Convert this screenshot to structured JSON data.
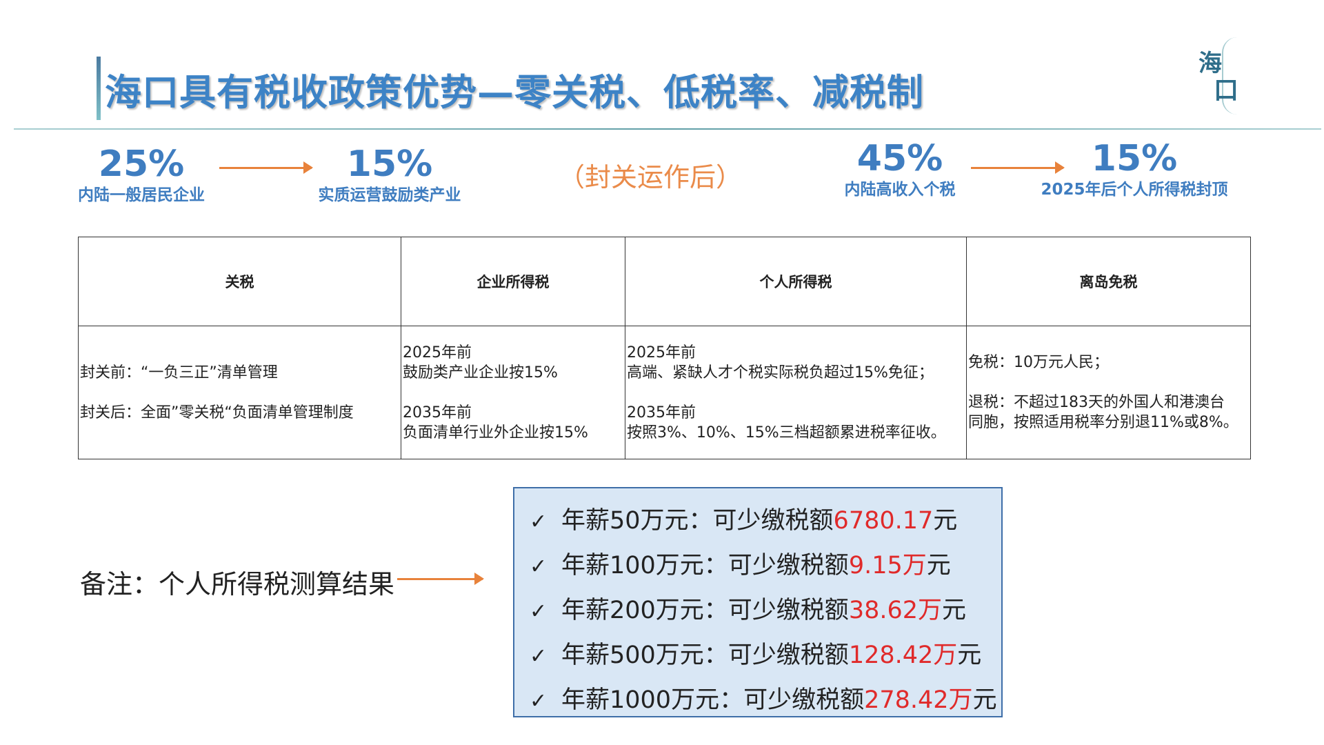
{
  "header": {
    "title": "海口具有税收政策优势—零关税、低税率、减税制",
    "logo_text": [
      "海",
      "口"
    ]
  },
  "colors": {
    "accent_blue": "#3f7dc0",
    "orange": "#e8823b",
    "red": "#e02a2a"
  },
  "stats": {
    "corp_before": {
      "value": "25%",
      "label": "内陆一般居民企业"
    },
    "corp_after": {
      "value": "15%",
      "label": "实质运营鼓励类产业"
    },
    "center_note": "（封关运作后）",
    "personal_before": {
      "value": "45%",
      "label": "内陆高收入个税"
    },
    "personal_after": {
      "value": "15%",
      "label": "2025年后个人所得税封顶"
    }
  },
  "table": {
    "headers": [
      "关税",
      "企业所得税",
      "个人所得税",
      "离岛免税"
    ],
    "tariff": [
      "封关前：“一负三正”清单管理",
      "封关后：全面”零关税“负面清单管理制度"
    ],
    "corporate": [
      "2025年前",
      "鼓励类产业企业按15%",
      "2035年前",
      "负面清单行业外企业按15%"
    ],
    "personal": [
      "2025年前",
      "高端、紧缺人才个税实际税负超过15%免征；",
      "2035年前",
      "按照3%、10%、15%三档超额累进税率征收。"
    ],
    "duty_free": [
      "免税：10万元人民；",
      "退税：不超过183天的外国人和港澳台",
      "同胞，按照适用税率分别退11%或8%。"
    ]
  },
  "note": {
    "label": "备注：个人所得税测算结果"
  },
  "results": [
    {
      "prefix": "年薪50万元：可少缴税额",
      "amount": "6780.17",
      "unit_red": "",
      "suffix": "元"
    },
    {
      "prefix": "年薪100万元：可少缴税额",
      "amount": "9.15",
      "unit_red": "万",
      "suffix": "元"
    },
    {
      "prefix": "年薪200万元：可少缴税额",
      "amount": "38.62",
      "unit_red": "万",
      "suffix": "元"
    },
    {
      "prefix": "年薪500万元：可少缴税额",
      "amount": "128.42",
      "unit_red": "万",
      "suffix": "元"
    },
    {
      "prefix": "年薪1000万元：可少缴税额",
      "amount": "278.42",
      "unit_red": "万",
      "suffix": "元"
    }
  ],
  "check_glyph": "✓"
}
